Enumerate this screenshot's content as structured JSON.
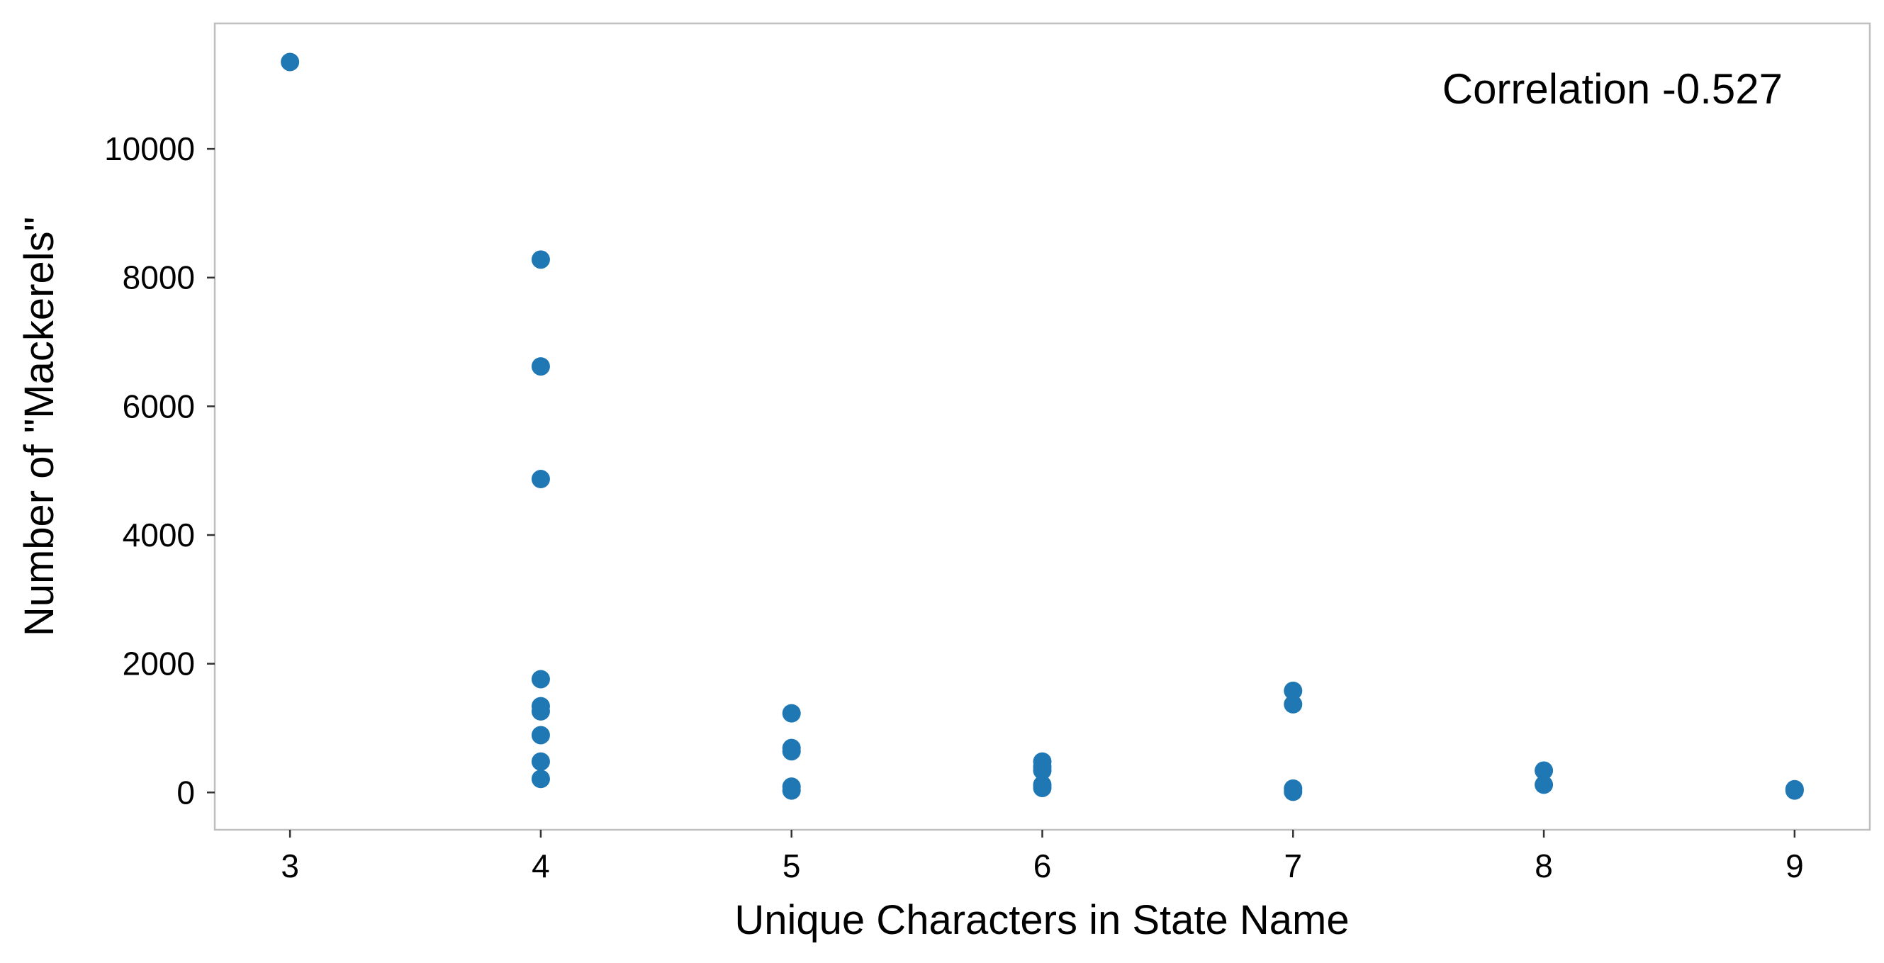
{
  "chart_data": {
    "type": "scatter",
    "title": "",
    "xlabel": "Unique Characters in State Name",
    "ylabel": "Number of \"Mackerels\"",
    "annotation": "Correlation -0.527",
    "xlim": [
      2.7,
      9.3
    ],
    "ylim": [
      -580,
      11950
    ],
    "xticks": [
      3,
      4,
      5,
      6,
      7,
      8,
      9
    ],
    "yticks": [
      0,
      2000,
      4000,
      6000,
      8000,
      10000
    ],
    "grid": false,
    "marker_color": "#1f77b4",
    "points": [
      {
        "x": 3,
        "y": 11350
      },
      {
        "x": 4,
        "y": 8280
      },
      {
        "x": 4,
        "y": 6620
      },
      {
        "x": 4,
        "y": 4870
      },
      {
        "x": 4,
        "y": 1760
      },
      {
        "x": 4,
        "y": 1340
      },
      {
        "x": 4,
        "y": 1260
      },
      {
        "x": 4,
        "y": 890
      },
      {
        "x": 4,
        "y": 480
      },
      {
        "x": 4,
        "y": 210
      },
      {
        "x": 5,
        "y": 1230
      },
      {
        "x": 5,
        "y": 690
      },
      {
        "x": 5,
        "y": 640
      },
      {
        "x": 5,
        "y": 90
      },
      {
        "x": 5,
        "y": 30
      },
      {
        "x": 6,
        "y": 480
      },
      {
        "x": 6,
        "y": 400
      },
      {
        "x": 6,
        "y": 340
      },
      {
        "x": 6,
        "y": 120
      },
      {
        "x": 6,
        "y": 70
      },
      {
        "x": 7,
        "y": 1580
      },
      {
        "x": 7,
        "y": 1370
      },
      {
        "x": 7,
        "y": 60
      },
      {
        "x": 7,
        "y": 10
      },
      {
        "x": 8,
        "y": 340
      },
      {
        "x": 8,
        "y": 120
      },
      {
        "x": 9,
        "y": 50
      },
      {
        "x": 9,
        "y": 30
      }
    ]
  }
}
